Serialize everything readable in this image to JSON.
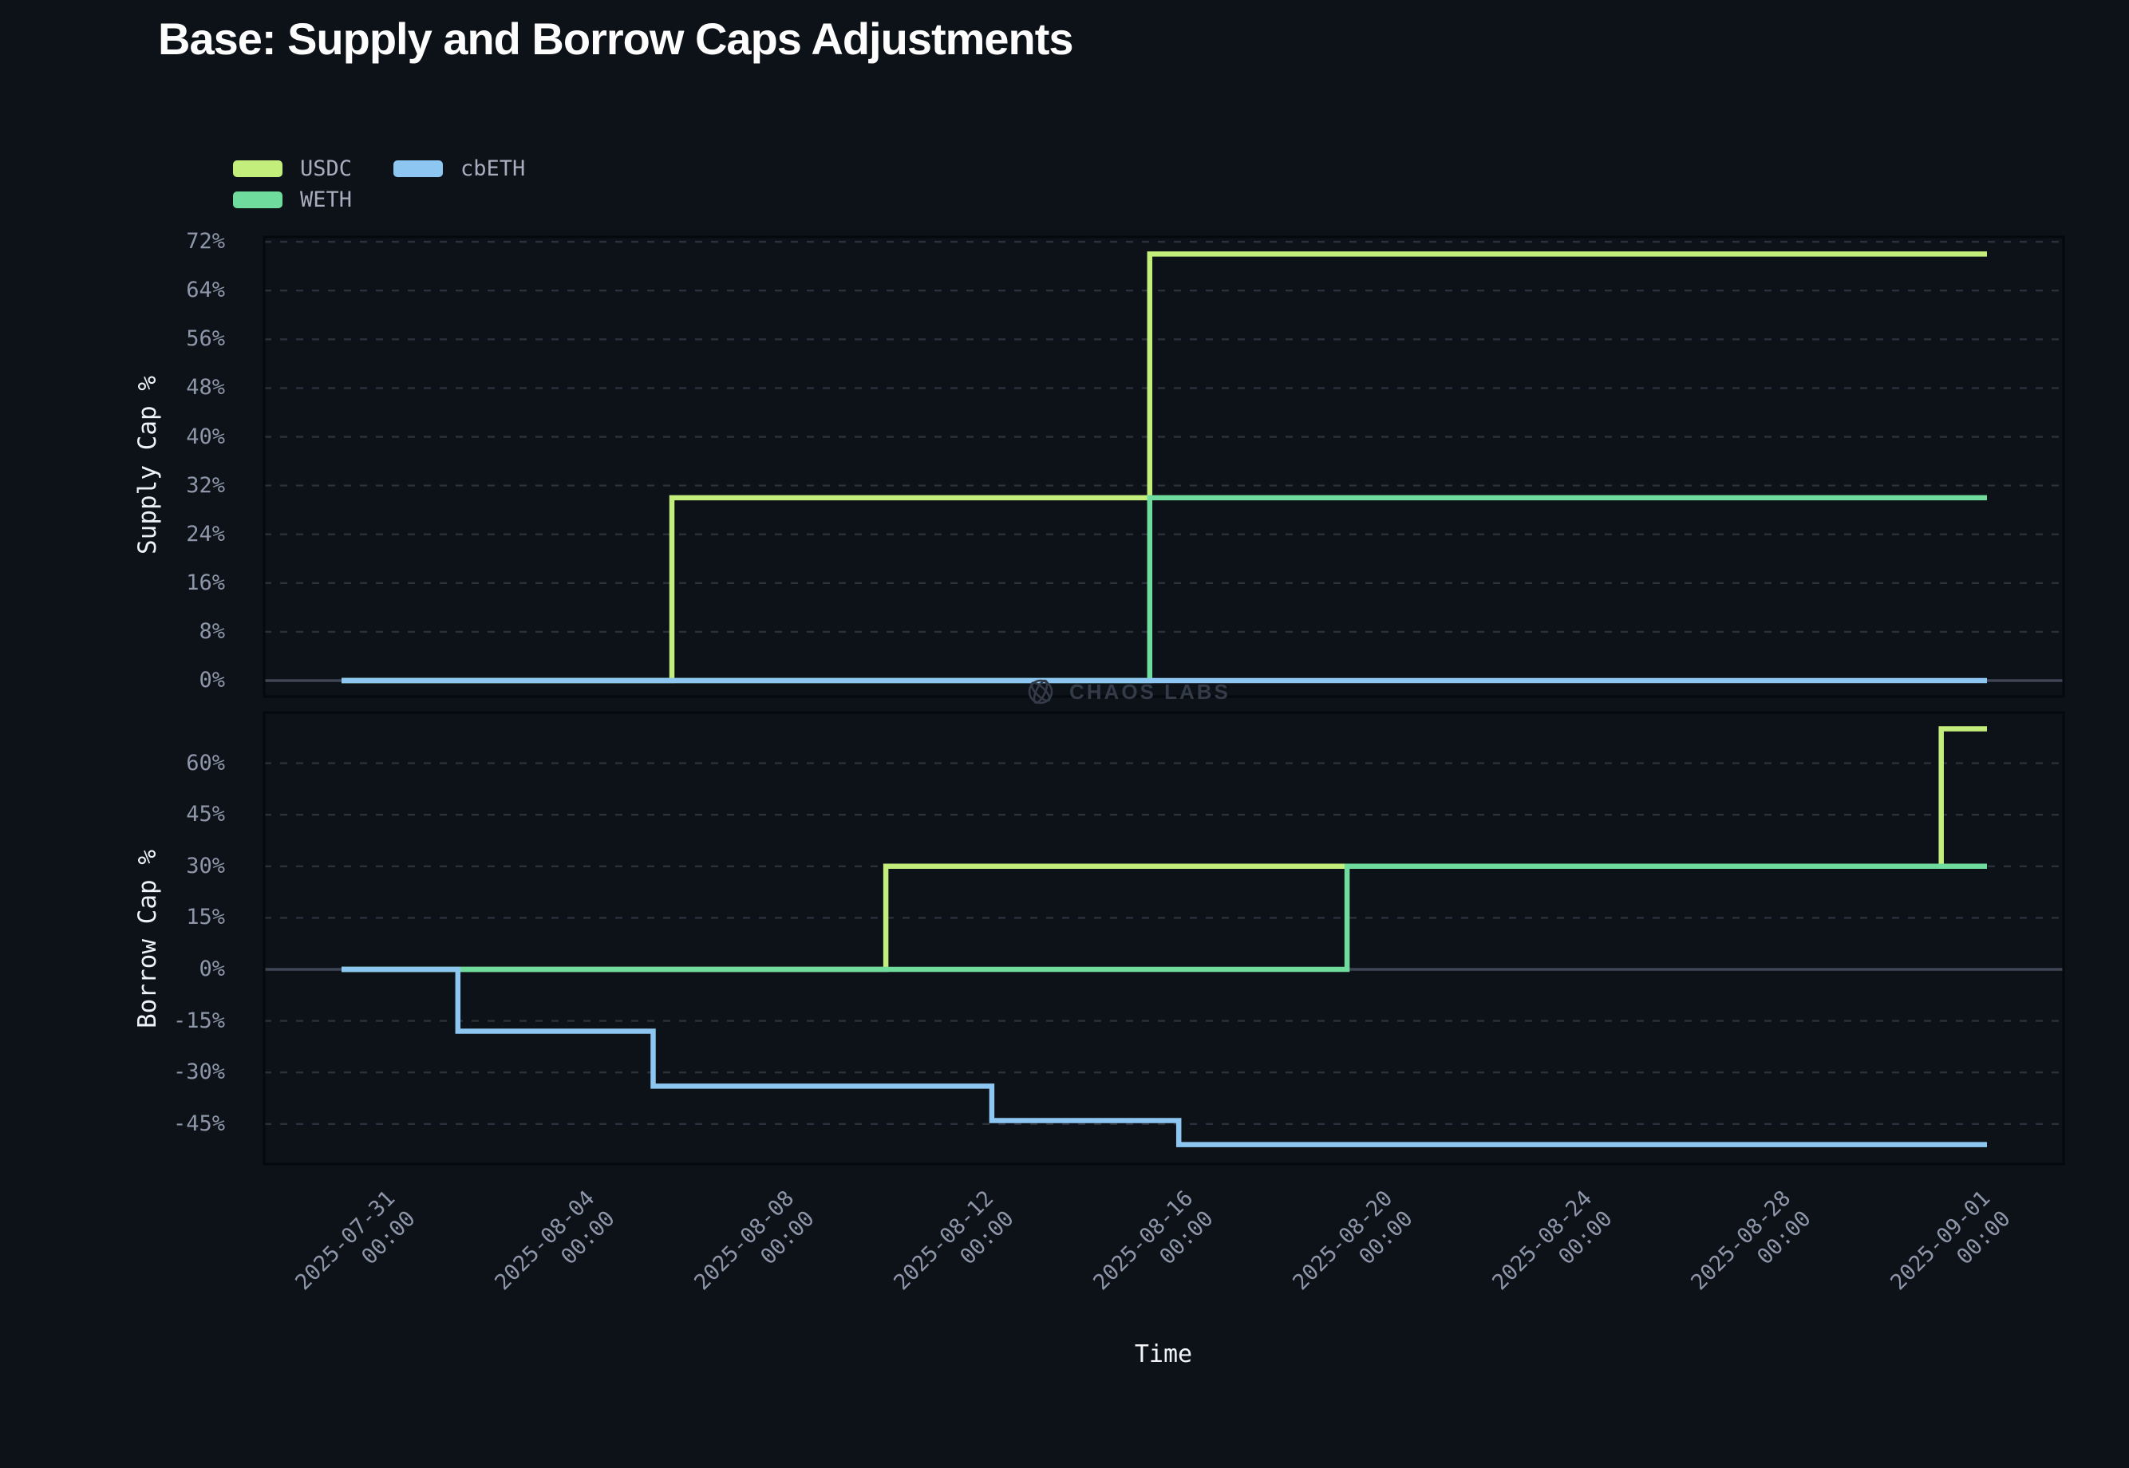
{
  "title": "Base: Supply and Borrow Caps Adjustments",
  "colors": {
    "background": "#0d1118",
    "plot_border": "#05080d",
    "gridline": "#2b303c",
    "zero_line": "#3e4554",
    "tick_text": "#8d97a9",
    "usdc": "#c3ee7c",
    "weth": "#6fdc9d",
    "cbeth": "#8cc6f1",
    "watermark": "#343b48"
  },
  "legend": {
    "items": [
      {
        "label": "USDC",
        "color": "#c3ee7c"
      },
      {
        "label": "WETH",
        "color": "#6fdc9d"
      },
      {
        "label": "cbETH",
        "color": "#8cc6f1"
      }
    ]
  },
  "watermark": {
    "icon": "chaos-labs-logo",
    "text": "CHAOS LABS"
  },
  "chart_data": {
    "type": "line",
    "title": "Base: Supply and Borrow Caps Adjustments",
    "xlabel": "Time",
    "grid": "dashed-horizontal",
    "legend_position": "top-left",
    "x_domain": [
      "2025-07-30T06:00:00",
      "2025-09-01T06:00:00"
    ],
    "x_ticks": [
      {
        "t": "2025-07-31T00:00:00",
        "date": "2025-07-31",
        "time": "00:00"
      },
      {
        "t": "2025-08-04T00:00:00",
        "date": "2025-08-04",
        "time": "00:00"
      },
      {
        "t": "2025-08-08T00:00:00",
        "date": "2025-08-08",
        "time": "00:00"
      },
      {
        "t": "2025-08-12T00:00:00",
        "date": "2025-08-12",
        "time": "00:00"
      },
      {
        "t": "2025-08-16T00:00:00",
        "date": "2025-08-16",
        "time": "00:00"
      },
      {
        "t": "2025-08-20T00:00:00",
        "date": "2025-08-20",
        "time": "00:00"
      },
      {
        "t": "2025-08-24T00:00:00",
        "date": "2025-08-24",
        "time": "00:00"
      },
      {
        "t": "2025-08-28T00:00:00",
        "date": "2025-08-28",
        "time": "00:00"
      },
      {
        "t": "2025-09-01T00:00:00",
        "date": "2025-09-01",
        "time": "00:00"
      }
    ],
    "subplots": [
      {
        "name": "supply",
        "ylabel": "Supply Cap %",
        "ylim": [
          -2.6,
          72.8
        ],
        "y_ticks": [
          {
            "v": 72,
            "label": "72%"
          },
          {
            "v": 64,
            "label": "64%"
          },
          {
            "v": 56,
            "label": "56%"
          },
          {
            "v": 48,
            "label": "48%"
          },
          {
            "v": 40,
            "label": "40%"
          },
          {
            "v": 32,
            "label": "32%"
          },
          {
            "v": 24,
            "label": "24%"
          },
          {
            "v": 16,
            "label": "16%"
          },
          {
            "v": 8,
            "label": "8%"
          },
          {
            "v": 0,
            "label": "0%"
          }
        ],
        "series": [
          {
            "name": "USDC",
            "color": "#c3ee7c",
            "points": [
              [
                "2025-07-30T06:00:00",
                0
              ],
              [
                "2025-08-05T21:00:00",
                0
              ],
              [
                "2025-08-05T21:00:00",
                30
              ],
              [
                "2025-08-15T11:00:00",
                30
              ],
              [
                "2025-08-15T11:00:00",
                70
              ],
              [
                "2025-09-01T06:00:00",
                70
              ]
            ]
          },
          {
            "name": "WETH",
            "color": "#6fdc9d",
            "points": [
              [
                "2025-07-30T06:00:00",
                0
              ],
              [
                "2025-08-15T11:00:00",
                0
              ],
              [
                "2025-08-15T11:00:00",
                30
              ],
              [
                "2025-09-01T06:00:00",
                30
              ]
            ]
          },
          {
            "name": "cbETH",
            "color": "#8cc6f1",
            "points": [
              [
                "2025-07-30T06:00:00",
                0
              ],
              [
                "2025-09-01T06:00:00",
                0
              ]
            ]
          }
        ]
      },
      {
        "name": "borrow",
        "ylabel": "Borrow Cap %",
        "ylim": [
          -56.7,
          74.8
        ],
        "y_ticks": [
          {
            "v": 60,
            "label": "60%"
          },
          {
            "v": 45,
            "label": "45%"
          },
          {
            "v": 30,
            "label": "30%"
          },
          {
            "v": 15,
            "label": "15%"
          },
          {
            "v": 0,
            "label": "0%"
          },
          {
            "v": -15,
            "label": "-15%"
          },
          {
            "v": -30,
            "label": "-30%"
          },
          {
            "v": -45,
            "label": "-45%"
          }
        ],
        "series": [
          {
            "name": "USDC",
            "color": "#c3ee7c",
            "points": [
              [
                "2025-07-30T06:00:00",
                0
              ],
              [
                "2025-08-10T04:00:00",
                0
              ],
              [
                "2025-08-10T04:00:00",
                30
              ],
              [
                "2025-08-31T08:00:00",
                30
              ],
              [
                "2025-08-31T08:00:00",
                70
              ],
              [
                "2025-09-01T06:00:00",
                70
              ]
            ]
          },
          {
            "name": "WETH",
            "color": "#6fdc9d",
            "points": [
              [
                "2025-07-30T06:00:00",
                0
              ],
              [
                "2025-08-19T10:00:00",
                0
              ],
              [
                "2025-08-19T10:00:00",
                30
              ],
              [
                "2025-09-01T06:00:00",
                30
              ]
            ]
          },
          {
            "name": "cbETH",
            "color": "#8cc6f1",
            "points": [
              [
                "2025-07-30T06:00:00",
                0
              ],
              [
                "2025-08-01T14:00:00",
                0
              ],
              [
                "2025-08-01T14:00:00",
                -18
              ],
              [
                "2025-08-05T12:00:00",
                -18
              ],
              [
                "2025-08-05T12:00:00",
                -34
              ],
              [
                "2025-08-12T07:00:00",
                -34
              ],
              [
                "2025-08-12T07:00:00",
                -44
              ],
              [
                "2025-08-16T01:00:00",
                -44
              ],
              [
                "2025-08-16T01:00:00",
                -51
              ],
              [
                "2025-09-01T06:00:00",
                -51
              ]
            ]
          }
        ]
      }
    ]
  }
}
